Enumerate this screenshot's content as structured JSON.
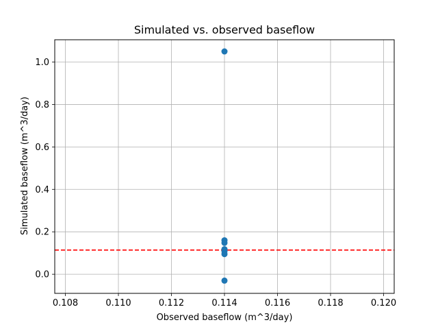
{
  "chart_data": {
    "type": "scatter",
    "title": "Simulated vs. observed baseflow",
    "xlabel": "Observed baseflow (m^3/day)",
    "ylabel": "Simulated baseflow (m^3/day)",
    "xlim": [
      0.1076,
      0.1204
    ],
    "ylim": [
      -0.09,
      1.105
    ],
    "xticks": [
      0.108,
      0.11,
      0.112,
      0.114,
      0.116,
      0.118,
      0.12
    ],
    "xtick_labels": [
      "0.108",
      "0.110",
      "0.112",
      "0.114",
      "0.116",
      "0.118",
      "0.120"
    ],
    "yticks": [
      0.0,
      0.2,
      0.4,
      0.6,
      0.8,
      1.0
    ],
    "ytick_labels": [
      "0.0",
      "0.2",
      "0.4",
      "0.6",
      "0.8",
      "1.0"
    ],
    "grid": true,
    "series": [
      {
        "color": "#1f77b4",
        "x": [
          0.114,
          0.114,
          0.114,
          0.114,
          0.114,
          0.114,
          0.114
        ],
        "y": [
          1.05,
          0.16,
          0.148,
          0.118,
          0.108,
          0.095,
          -0.03
        ]
      }
    ],
    "reference_line": {
      "orientation": "horizontal",
      "y": 0.114,
      "style": "dashed",
      "color": "#ff0000"
    }
  }
}
